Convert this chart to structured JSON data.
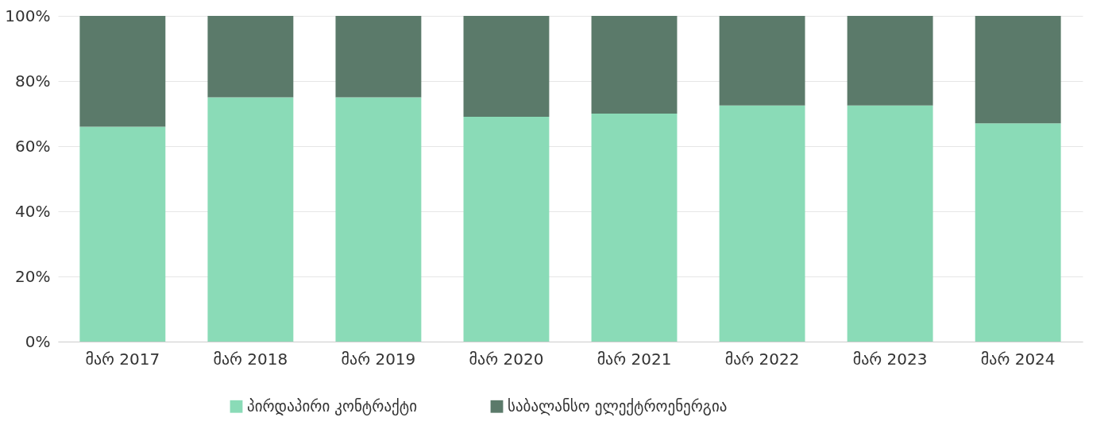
{
  "chart_data": {
    "type": "bar",
    "stacked": true,
    "categories": [
      "მარ 2017",
      "მარ 2018",
      "მარ 2019",
      "მარ 2020",
      "მარ 2021",
      "მარ 2022",
      "მარ 2023",
      "მარ 2024"
    ],
    "series": [
      {
        "name": "პირდაპირი კონტრაქტი",
        "color": "#8adbb7",
        "values": [
          66,
          75,
          75,
          69,
          70,
          72.5,
          72.5,
          67
        ]
      },
      {
        "name": "საბალანსო ელექტროენერგია",
        "color": "#5b7a6a",
        "values": [
          34,
          25,
          25,
          31,
          30,
          27.5,
          27.5,
          33
        ]
      }
    ],
    "ylim": [
      0,
      100
    ],
    "yticks": [
      {
        "value": 0,
        "label": "0%"
      },
      {
        "value": 20,
        "label": "20%"
      },
      {
        "value": 40,
        "label": "40%"
      },
      {
        "value": 60,
        "label": "60%"
      },
      {
        "value": 80,
        "label": "80%"
      },
      {
        "value": 100,
        "label": "100%"
      }
    ],
    "grid": "y",
    "legend": "bottom"
  }
}
